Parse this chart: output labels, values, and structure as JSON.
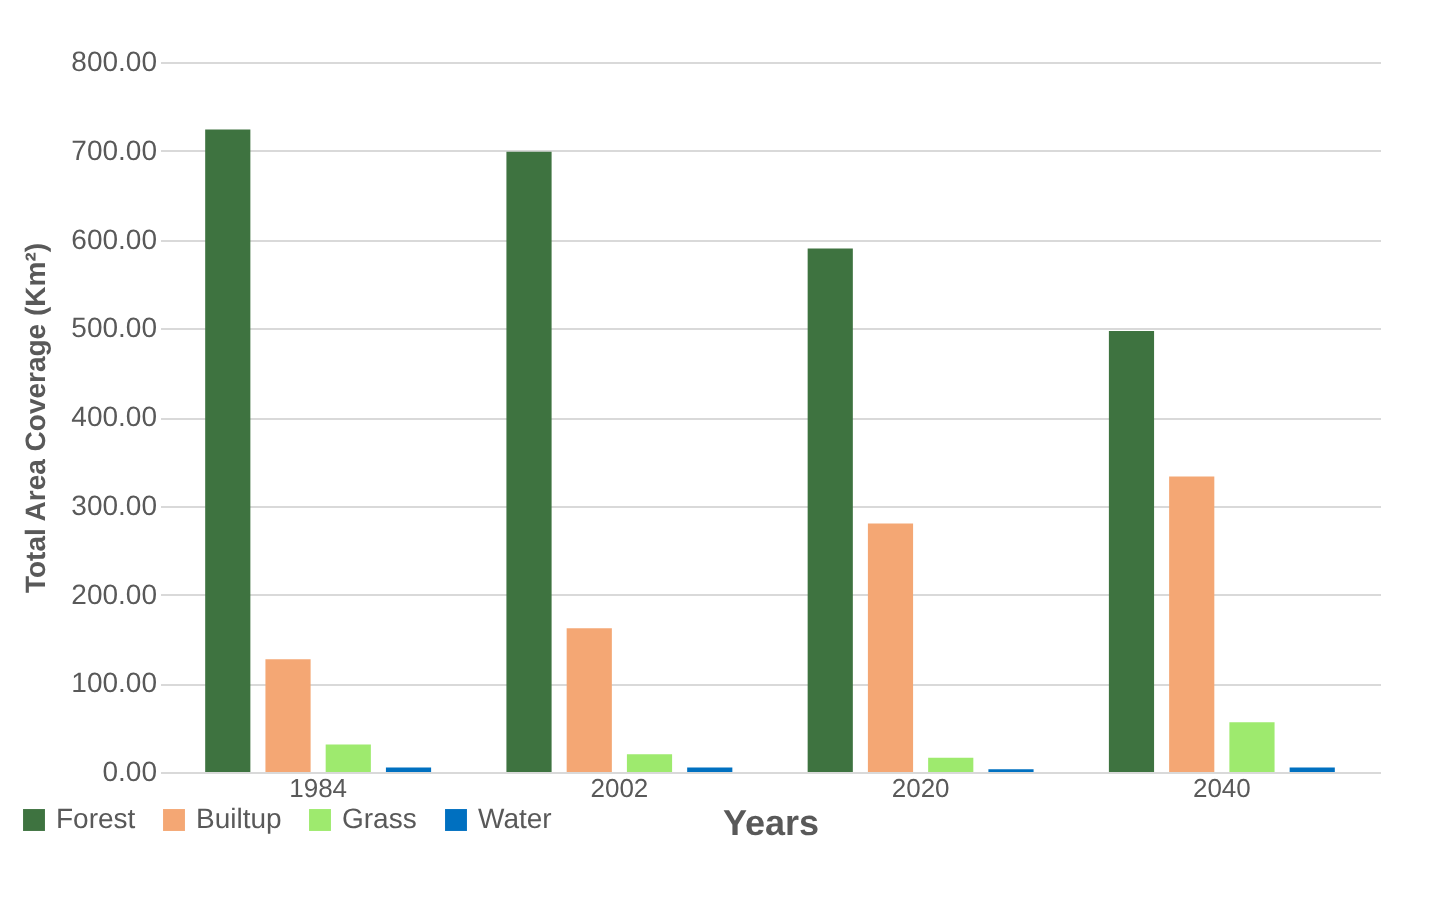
{
  "chart_data": {
    "type": "bar",
    "xlabel": "Years",
    "ylabel": "Total Area Coverage (Km²)",
    "categories": [
      "1984",
      "2002",
      "2020",
      "2040"
    ],
    "series": [
      {
        "name": "Forest",
        "color": "#3e7340",
        "values": [
          724,
          699,
          590,
          497
        ]
      },
      {
        "name": "Builtup",
        "color": "#f4a774",
        "values": [
          127,
          162,
          280,
          333
        ]
      },
      {
        "name": "Grass",
        "color": "#9eea6e",
        "values": [
          31,
          20,
          16,
          56
        ]
      },
      {
        "name": "Water",
        "color": "#0070c0",
        "values": [
          5,
          5,
          3,
          5
        ]
      }
    ],
    "ylim": [
      0,
      800
    ],
    "yticks": [
      {
        "value": 0,
        "label": "0.00"
      },
      {
        "value": 100,
        "label": "100.00"
      },
      {
        "value": 200,
        "label": "200.00"
      },
      {
        "value": 300,
        "label": "300.00"
      },
      {
        "value": 400,
        "label": "400.00"
      },
      {
        "value": 500,
        "label": "500.00"
      },
      {
        "value": 600,
        "label": "600.00"
      },
      {
        "value": 700,
        "label": "700.00"
      },
      {
        "value": 800,
        "label": "800.00"
      }
    ],
    "grid": "y",
    "legend": "bottom left"
  }
}
